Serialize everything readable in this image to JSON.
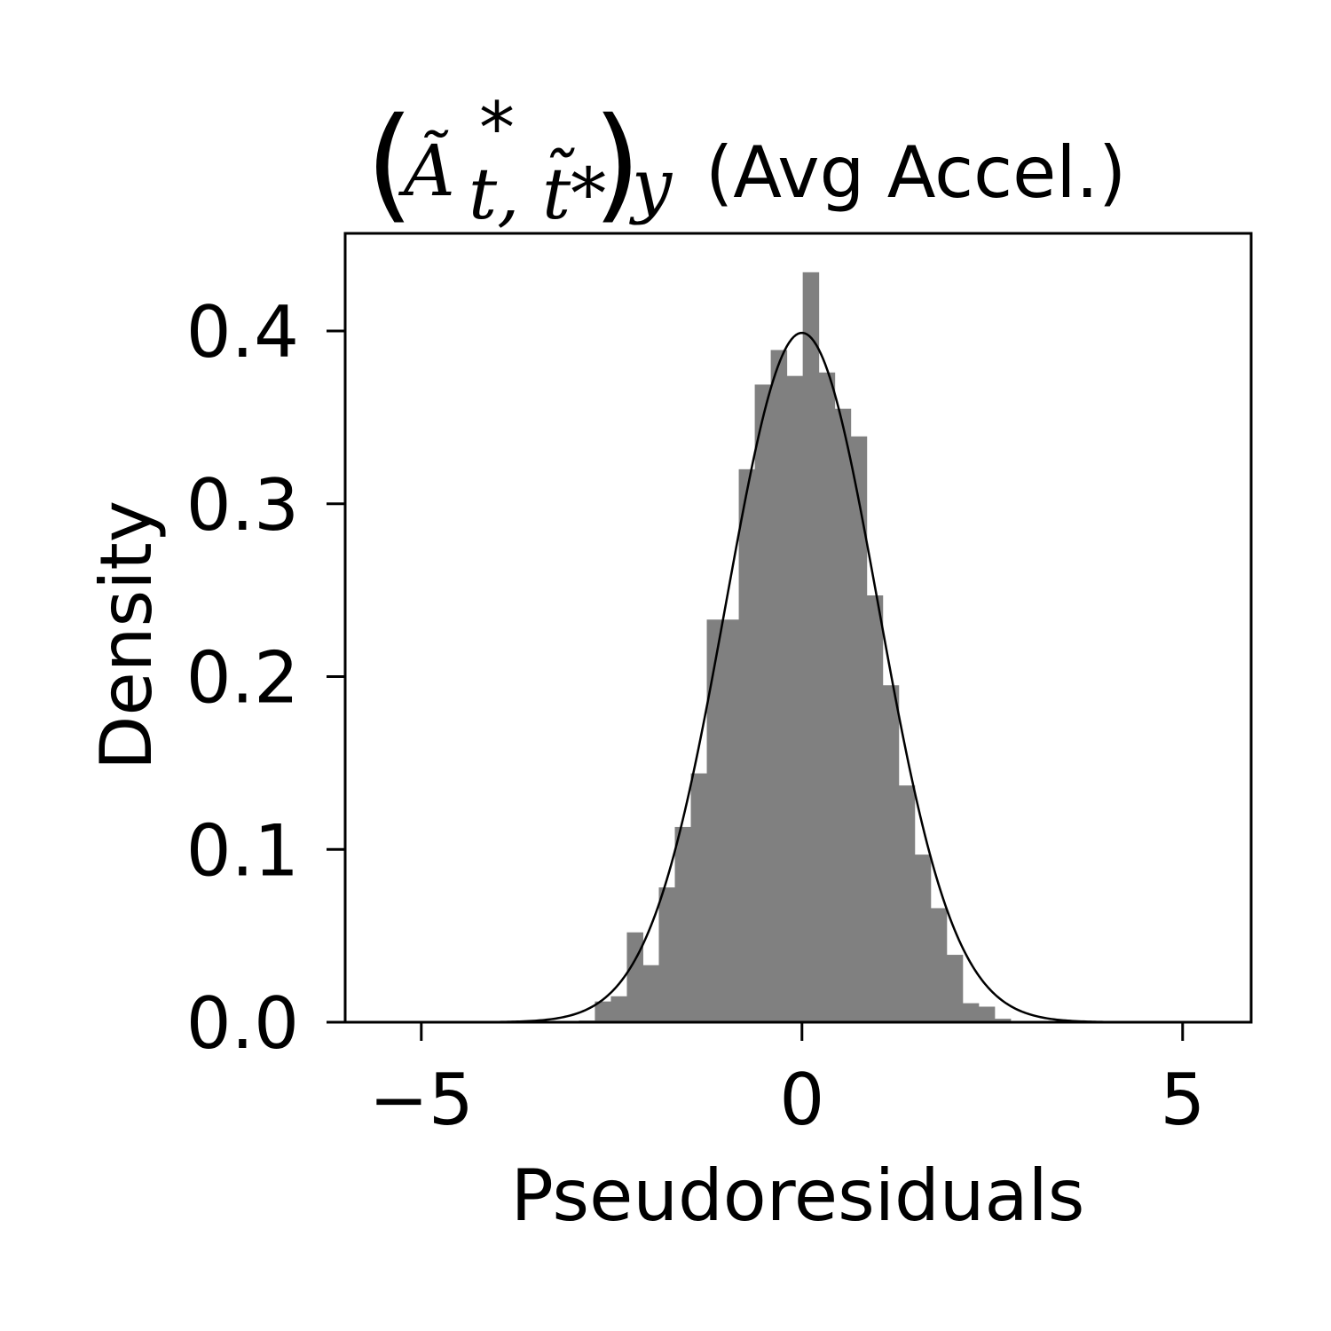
{
  "chart_data": {
    "type": "bar",
    "title": {
      "symbol": "Ã",
      "superscript": "*",
      "subscript": "t, t̃*",
      "component": "y",
      "suffix": "(Avg Accel.)"
    },
    "xlabel": "Pseudoresiduals",
    "ylabel": "Density",
    "xlim": [
      -6.0,
      5.9
    ],
    "ylim": [
      0,
      0.4565
    ],
    "xticks": [
      -5,
      0,
      5
    ],
    "xtick_labels": [
      "−5",
      "0",
      "5"
    ],
    "yticks": [
      0.0,
      0.1,
      0.2,
      0.3,
      0.4
    ],
    "ytick_labels": [
      "0.0",
      "0.1",
      "0.2",
      "0.3",
      "0.4"
    ],
    "grid": false,
    "bar_color": "#808080",
    "curve_color": "#000000",
    "bin_width": 0.21,
    "bin_edges": [
      -3.14,
      -2.93,
      -2.72,
      -2.51,
      -2.3,
      -2.09,
      -1.88,
      -1.67,
      -1.46,
      -1.25,
      -1.04,
      -0.83,
      -0.62,
      -0.41,
      -0.2,
      0.01,
      0.22,
      0.43,
      0.64,
      0.85,
      1.06,
      1.27,
      1.48,
      1.69,
      1.9,
      2.11,
      2.32,
      2.53,
      2.74
    ],
    "density": [
      0.0005,
      0.001,
      0.012,
      0.015,
      0.052,
      0.033,
      0.078,
      0.113,
      0.144,
      0.233,
      0.233,
      0.32,
      0.369,
      0.389,
      0.374,
      0.434,
      0.376,
      0.355,
      0.339,
      0.247,
      0.195,
      0.137,
      0.097,
      0.066,
      0.039,
      0.011,
      0.009,
      0.002
    ],
    "overlay": {
      "type": "line",
      "distribution": "standard normal pdf",
      "mean": 0,
      "sd": 1
    }
  }
}
